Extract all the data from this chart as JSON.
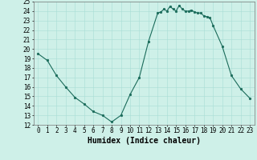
{
  "x": [
    0,
    1,
    2,
    3,
    4,
    5,
    6,
    7,
    8,
    9,
    10,
    11,
    12,
    13,
    13.33,
    13.67,
    14,
    14.33,
    14.67,
    15,
    15.33,
    15.67,
    16,
    16.33,
    16.67,
    17,
    17.33,
    17.67,
    18,
    18.33,
    18.67,
    19,
    20,
    21,
    22,
    23
  ],
  "y": [
    19.5,
    18.8,
    17.2,
    16.0,
    14.9,
    14.2,
    13.4,
    13.0,
    12.3,
    13.0,
    15.2,
    17.0,
    20.8,
    23.8,
    23.9,
    24.2,
    24.0,
    24.5,
    24.2,
    24.0,
    24.6,
    24.2,
    24.0,
    24.0,
    24.1,
    23.9,
    23.8,
    23.8,
    23.5,
    23.4,
    23.3,
    22.5,
    20.3,
    17.2,
    15.8,
    14.8
  ],
  "xlabel": "Humidex (Indice chaleur)",
  "xlim_min": -0.5,
  "xlim_max": 23.5,
  "ylim_min": 12,
  "ylim_max": 25,
  "yticks": [
    12,
    13,
    14,
    15,
    16,
    17,
    18,
    19,
    20,
    21,
    22,
    23,
    24,
    25
  ],
  "xticks": [
    0,
    1,
    2,
    3,
    4,
    5,
    6,
    7,
    8,
    9,
    10,
    11,
    12,
    13,
    14,
    15,
    16,
    17,
    18,
    19,
    20,
    21,
    22,
    23
  ],
  "line_color": "#1a6b5a",
  "bg_color": "#cef0e8",
  "grid_color": "#a8ddd5",
  "xlabel_fontsize": 7,
  "tick_fontsize": 5.5,
  "fig_width": 3.2,
  "fig_height": 2.0,
  "dpi": 100
}
